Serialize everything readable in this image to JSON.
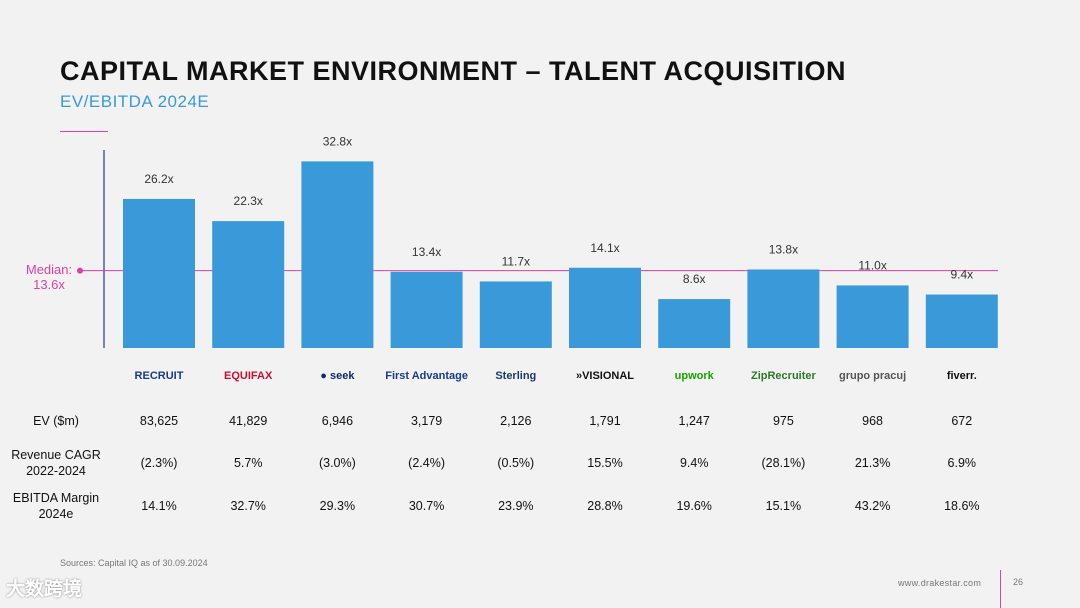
{
  "title": "CAPITAL MARKET ENVIRONMENT – TALENT ACQUISITION",
  "subtitle": "EV/EBITDA 2024E",
  "colors": {
    "bar": "#3a9ad9",
    "median": "#e040a0",
    "subtitle": "#3a9ad9"
  },
  "chart_data": {
    "type": "bar",
    "title": "EV/EBITDA 2024E",
    "categories": [
      "Recruit",
      "Equifax",
      "Seek",
      "First Advantage",
      "Sterling",
      "Visional",
      "Upwork",
      "ZipRecruiter",
      "Grupo Pracuj",
      "Fiverr"
    ],
    "values": [
      26.2,
      22.3,
      32.8,
      13.4,
      11.7,
      14.1,
      8.6,
      13.8,
      11.0,
      9.4
    ],
    "value_labels": [
      "26.2x",
      "22.3x",
      "32.8x",
      "13.4x",
      "11.7x",
      "14.1x",
      "8.6x",
      "13.8x",
      "11.0x",
      "9.4x"
    ],
    "median": 13.6,
    "median_label_line1": "Median:",
    "median_label_line2": "13.6x",
    "ylim": [
      0,
      34.8
    ],
    "xlabel": "",
    "ylabel": ""
  },
  "logos": [
    {
      "text": "RECRUIT",
      "color": "#1a3a8a"
    },
    {
      "text": "EQUIFAX",
      "color": "#c8102e"
    },
    {
      "text": "● seek",
      "color": "#0d2a6b"
    },
    {
      "text": "First Advantage",
      "color": "#1a3a8a"
    },
    {
      "text": "Sterling",
      "color": "#1a3a6a"
    },
    {
      "text": "»VISIONAL",
      "color": "#111111"
    },
    {
      "text": "upwork",
      "color": "#14a800"
    },
    {
      "text": "ZipRecruiter",
      "color": "#2a7a2a"
    },
    {
      "text": "grupo pracuj",
      "color": "#555555"
    },
    {
      "text": "fiverr.",
      "color": "#111111"
    }
  ],
  "table": {
    "rows": [
      {
        "label": "EV ($m)",
        "values": [
          "83,625",
          "41,829",
          "6,946",
          "3,179",
          "2,126",
          "1,791",
          "1,247",
          "975",
          "968",
          "672"
        ]
      },
      {
        "label": "Revenue CAGR 2022-2024",
        "values": [
          "(2.3%)",
          "5.7%",
          "(3.0%)",
          "(2.4%)",
          "(0.5%)",
          "15.5%",
          "9.4%",
          "(28.1%)",
          "21.3%",
          "6.9%"
        ]
      },
      {
        "label": "EBITDA Margin 2024e",
        "values": [
          "14.1%",
          "32.7%",
          "29.3%",
          "30.7%",
          "23.9%",
          "28.8%",
          "19.6%",
          "15.1%",
          "43.2%",
          "18.6%"
        ]
      }
    ]
  },
  "source": "Sources: Capital IQ as of 30.09.2024",
  "site": "www.drakestar.com",
  "page_number": "26",
  "watermark": "大数跨境"
}
